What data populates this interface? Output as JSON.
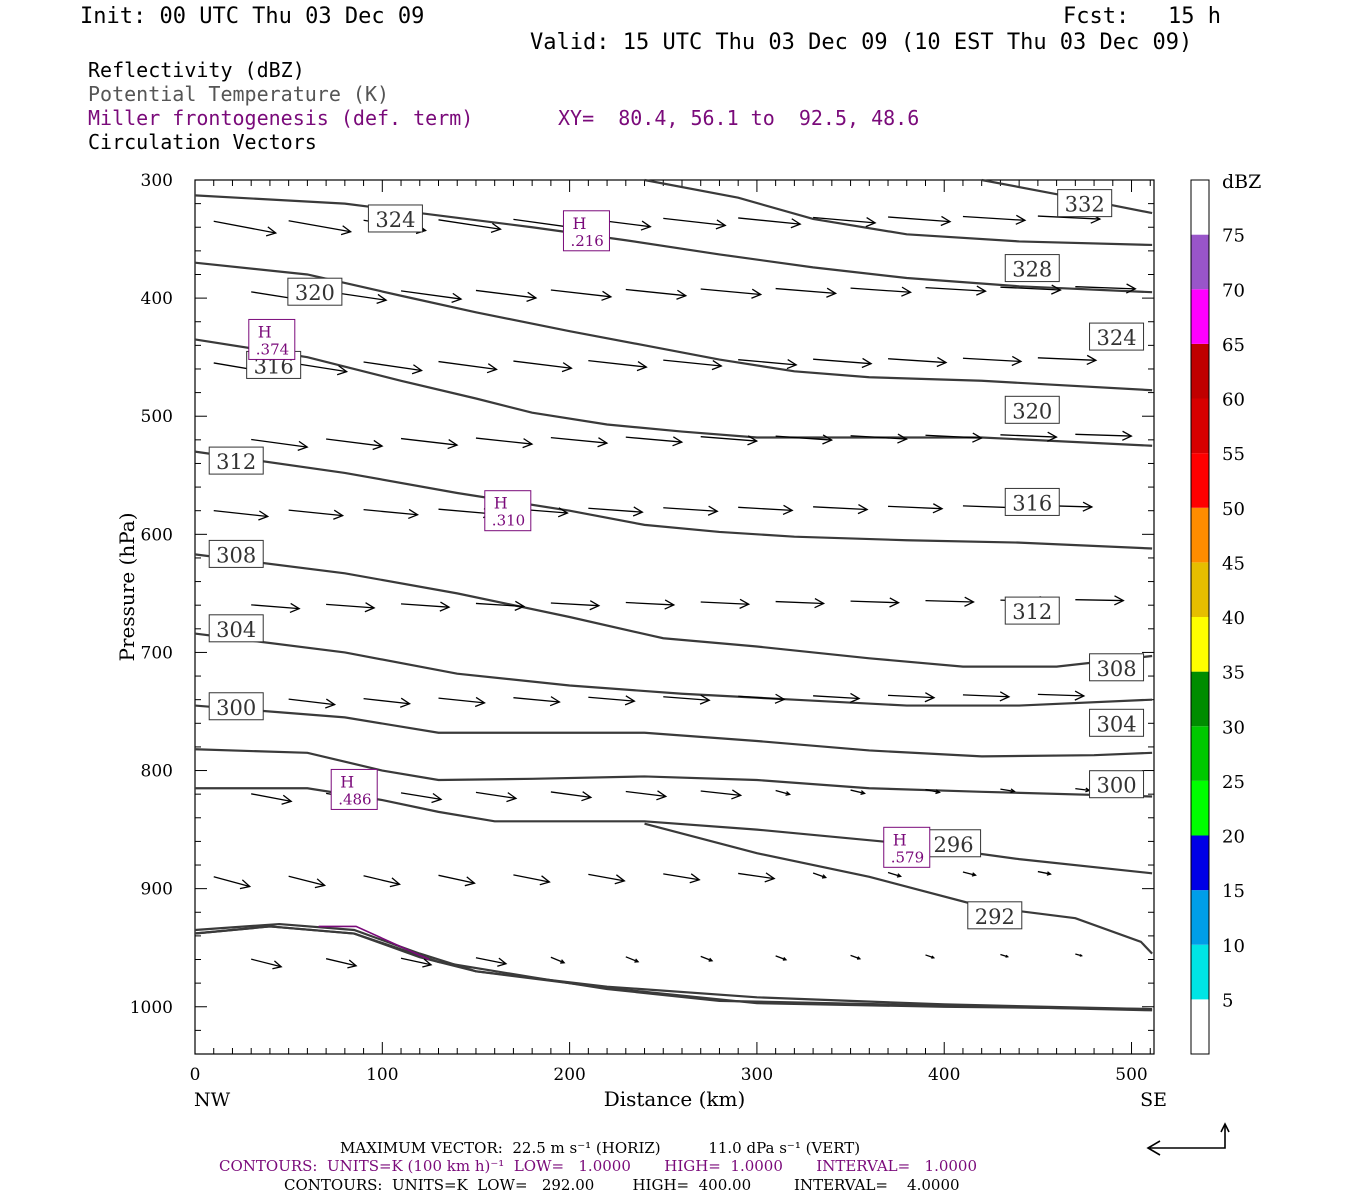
{
  "header": {
    "init": "Init: 00 UTC Thu 03 Dec 09",
    "fcst_label": "Fcst:",
    "fcst_value": "15 h",
    "valid": "Valid: 15 UTC Thu 03 Dec 09 (10 EST Thu 03 Dec 09)",
    "field1": "Reflectivity (dBZ)",
    "field2": "Potential Temperature (K)",
    "field3": "Miller frontogenesis (def. term)",
    "xy": "XY=  80.4, 56.1 to  92.5, 48.6",
    "field4": "Circulation Vectors"
  },
  "footer": {
    "vector_line": "MAXIMUM VECTOR:  22.5 m s⁻¹ (HORIZ)          11.0 dPa s⁻¹ (VERT)",
    "contours_front": "CONTOURS:  UNITS=K (100 km h)⁻¹  LOW=   1.0000       HIGH=  1.0000       INTERVAL=   1.0000",
    "contours_theta": "CONTOURS:  UNITS=K  LOW=   292.00        HIGH=  400.00         INTERVAL=    4.0000"
  },
  "colors": {
    "isentrope": "#3a3a3a",
    "frontogenesis": "#7a0a7a",
    "axis": "#000000"
  },
  "chart_data": {
    "type": "cross-section",
    "xlabel": "Distance (km)",
    "ylabel": "Pressure (hPa)",
    "xlim": [
      0,
      512
    ],
    "ylim": [
      1040,
      300
    ],
    "y_scale": "linear, pressure decreasing upward",
    "x_ticks": [
      "0",
      "100",
      "200",
      "300",
      "400",
      "500"
    ],
    "x_tick_values": [
      0,
      100,
      200,
      300,
      400,
      500
    ],
    "y_ticks": [
      "300",
      "400",
      "500",
      "600",
      "700",
      "800",
      "900",
      "1000"
    ],
    "y_tick_values": [
      300,
      400,
      500,
      600,
      700,
      800,
      900,
      1000
    ],
    "left_end_label": "NW",
    "right_end_label": "SE",
    "colorbar": {
      "unit": "dBZ",
      "levels": [
        "5",
        "10",
        "15",
        "20",
        "25",
        "30",
        "35",
        "40",
        "45",
        "50",
        "55",
        "60",
        "65",
        "70",
        "75"
      ],
      "colors": [
        "#ffffff",
        "#00e5e5",
        "#009ee8",
        "#0000e6",
        "#00ff00",
        "#00c800",
        "#008c00",
        "#ffff00",
        "#e6be00",
        "#ff8c00",
        "#ff0000",
        "#d60000",
        "#c00000",
        "#ff00ff",
        "#9955c9",
        "#ffffff"
      ]
    },
    "isentropes": [
      {
        "label": "292",
        "label_at": [
          427,
          923
        ],
        "points": [
          [
            0,
            938
          ],
          [
            40,
            932
          ],
          [
            85,
            938
          ],
          [
            120,
            958
          ],
          [
            150,
            970
          ],
          [
            220,
            983
          ],
          [
            300,
            992
          ],
          [
            400,
            998
          ],
          [
            510,
            1002
          ]
        ]
      },
      {
        "label": "292",
        "label_at": [
          427,
          923
        ],
        "points": [
          [
            0,
            938
          ],
          [
            40,
            932
          ],
          [
            85,
            938
          ],
          [
            130,
            962
          ],
          [
            180,
            975
          ],
          [
            220,
            985
          ],
          [
            280,
            995
          ],
          [
            400,
            999
          ],
          [
            511,
            1003
          ]
        ]
      },
      {
        "label": "292",
        "label_at": [
          427,
          923
        ],
        "points": [
          [
            0,
            935
          ],
          [
            45,
            930
          ],
          [
            85,
            935
          ],
          [
            120,
            955
          ],
          [
            150,
            970
          ],
          [
            225,
            985
          ],
          [
            300,
            997
          ],
          [
            400,
            1000
          ],
          [
            511,
            1002
          ]
        ]
      },
      {
        "label": "",
        "label_at": null,
        "points": [
          [
            0,
            935
          ]
        ]
      },
      {
        "label": "292",
        "label_at": [
          427,
          923
        ],
        "points": [
          [
            240,
            845
          ],
          [
            300,
            870
          ],
          [
            360,
            890
          ],
          [
            420,
            915
          ],
          [
            470,
            925
          ],
          [
            505,
            945
          ],
          [
            511,
            955
          ]
        ]
      },
      {
        "label": "296",
        "label_at": [
          405,
          862
        ],
        "points": [
          [
            0,
            815
          ],
          [
            60,
            815
          ],
          [
            100,
            825
          ],
          [
            130,
            835
          ],
          [
            160,
            843
          ],
          [
            240,
            843
          ],
          [
            300,
            850
          ],
          [
            380,
            862
          ],
          [
            440,
            875
          ],
          [
            511,
            887
          ]
        ]
      },
      {
        "label": "300",
        "label_at": [
          492,
          812
        ],
        "points": [
          [
            0,
            782
          ],
          [
            60,
            785
          ],
          [
            100,
            800
          ],
          [
            130,
            808
          ],
          [
            180,
            807
          ],
          [
            240,
            805
          ],
          [
            300,
            808
          ],
          [
            360,
            815
          ],
          [
            420,
            818
          ],
          [
            511,
            822
          ]
        ]
      },
      {
        "label": "304",
        "label_at": [
          492,
          760
        ],
        "points": [
          [
            0,
            745
          ],
          [
            80,
            755
          ],
          [
            130,
            768
          ],
          [
            200,
            768
          ],
          [
            240,
            768
          ],
          [
            300,
            775
          ],
          [
            360,
            783
          ],
          [
            420,
            788
          ],
          [
            480,
            787
          ],
          [
            511,
            785
          ]
        ]
      },
      {
        "label": "300",
        "label_at": [
          22,
          746
        ],
        "points": [
          [
            0,
            745
          ]
        ]
      },
      {
        "label": "308",
        "label_at": [
          492,
          713
        ],
        "points": [
          [
            0,
            684
          ],
          [
            80,
            700
          ],
          [
            140,
            718
          ],
          [
            200,
            728
          ],
          [
            260,
            735
          ],
          [
            320,
            740
          ],
          [
            380,
            745
          ],
          [
            440,
            745
          ],
          [
            511,
            740
          ]
        ]
      },
      {
        "label": "304",
        "label_at": [
          22,
          680
        ],
        "points": [
          [
            0,
            684
          ]
        ]
      },
      {
        "label": "312",
        "label_at": [
          447,
          665
        ],
        "points": [
          [
            0,
            617
          ],
          [
            80,
            633
          ],
          [
            140,
            650
          ],
          [
            200,
            670
          ],
          [
            250,
            688
          ],
          [
            300,
            695
          ],
          [
            360,
            705
          ],
          [
            410,
            712
          ],
          [
            460,
            712
          ],
          [
            511,
            703
          ]
        ]
      },
      {
        "label": "308",
        "label_at": [
          22,
          617
        ],
        "points": [
          [
            0,
            617
          ]
        ]
      },
      {
        "label": "316",
        "label_at": [
          447,
          573
        ],
        "points": [
          [
            0,
            530
          ],
          [
            80,
            548
          ],
          [
            140,
            565
          ],
          [
            200,
            580
          ],
          [
            240,
            592
          ],
          [
            280,
            598
          ],
          [
            320,
            602
          ],
          [
            380,
            605
          ],
          [
            440,
            607
          ],
          [
            511,
            612
          ]
        ]
      },
      {
        "label": "312",
        "label_at": [
          22,
          538
        ],
        "points": [
          [
            0,
            530
          ]
        ]
      },
      {
        "label": "320",
        "label_at": [
          447,
          495
        ],
        "points": [
          [
            0,
            435
          ],
          [
            60,
            450
          ],
          [
            110,
            470
          ],
          [
            150,
            485
          ],
          [
            180,
            497
          ],
          [
            220,
            507
          ],
          [
            260,
            513
          ],
          [
            300,
            518
          ],
          [
            360,
            518
          ],
          [
            420,
            518
          ],
          [
            511,
            525
          ]
        ]
      },
      {
        "label": "316",
        "label_at": [
          42,
          457
        ],
        "points": [
          [
            0,
            435
          ]
        ]
      },
      {
        "label": "324",
        "label_at": [
          492,
          433
        ],
        "points": [
          [
            0,
            370
          ],
          [
            60,
            380
          ],
          [
            110,
            398
          ],
          [
            150,
            412
          ],
          [
            200,
            428
          ],
          [
            240,
            440
          ],
          [
            280,
            452
          ],
          [
            320,
            462
          ],
          [
            360,
            467
          ],
          [
            420,
            470
          ],
          [
            511,
            478
          ]
        ]
      },
      {
        "label": "320",
        "label_at": [
          64,
          395
        ],
        "points": [
          [
            0,
            370
          ]
        ]
      },
      {
        "label": "328",
        "label_at": [
          447,
          375
        ],
        "points": [
          [
            0,
            313
          ],
          [
            80,
            320
          ],
          [
            130,
            330
          ],
          [
            180,
            340
          ],
          [
            230,
            351
          ],
          [
            280,
            363
          ],
          [
            330,
            374
          ],
          [
            380,
            383
          ],
          [
            440,
            390
          ],
          [
            511,
            395
          ]
        ]
      },
      {
        "label": "324",
        "label_at": [
          107,
          333
        ],
        "points": [
          [
            0,
            313
          ]
        ]
      },
      {
        "label": "332",
        "label_at": [
          475,
          320
        ],
        "points": [
          [
            240,
            300
          ],
          [
            290,
            315
          ],
          [
            330,
            333
          ],
          [
            380,
            346
          ],
          [
            440,
            352
          ],
          [
            511,
            355
          ]
        ]
      },
      {
        "label": "332",
        "label_at": [
          475,
          320
        ],
        "points": [
          [
            420,
            300
          ],
          [
            460,
            312
          ],
          [
            511,
            328
          ]
        ]
      }
    ],
    "frontogenesis_maxima": [
      {
        "label": "H",
        "value": ".216",
        "x": 209,
        "p": 343
      },
      {
        "label": "H",
        "value": ".374",
        "x": 41,
        "p": 435
      },
      {
        "label": "H",
        "value": ".310",
        "x": 167,
        "p": 580
      },
      {
        "label": "H",
        "value": ".486",
        "x": 85,
        "p": 816
      },
      {
        "label": "H",
        "value": ".579",
        "x": 380,
        "p": 865
      }
    ]
  }
}
